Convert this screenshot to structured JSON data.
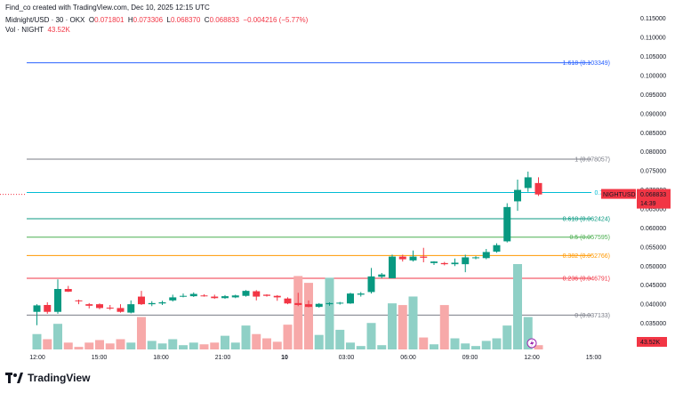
{
  "header": {
    "created_by": "Find_co created with TradingView.com, Dec 10, 2025 12:15 UTC",
    "symbol": "Midnight/USD · 30 · OKX",
    "open_k": "O",
    "open_v": "0.071801",
    "high_k": "H",
    "high_v": "0.073306",
    "low_k": "L",
    "low_v": "0.068370",
    "close_k": "C",
    "close_v": "0.068833",
    "change": "−0.004216 (−5.77%)",
    "vol_label": "Vol · NIGHT",
    "vol_value": "43.52K"
  },
  "logo_text": "TradingView",
  "colors": {
    "up": "#089981",
    "down": "#f23645",
    "up_vol": "#8fd0c6",
    "down_vol": "#f7a9a9"
  },
  "chart_data": {
    "type": "candlestick",
    "y_ticks": [
      "0.030000",
      "0.035000",
      "0.040000",
      "0.045000",
      "0.050000",
      "0.055000",
      "0.060000",
      "0.065000",
      "0.070000",
      "0.075000",
      "0.080000",
      "0.085000",
      "0.090000",
      "0.095000",
      "0.100000",
      "0.105000",
      "0.110000",
      "0.115000"
    ],
    "ylim": [
      0.0265,
      0.1175
    ],
    "x_ticks": [
      "12:00",
      "15:00",
      "18:00",
      "21:00",
      "10",
      "03:00",
      "06:00",
      "09:00",
      "12:00",
      "15:00"
    ],
    "last_price": {
      "symbol": "NIGHTUSD",
      "value": "0.068833",
      "countdown": "14:39"
    },
    "last_volume": "43.52K",
    "fib_levels": [
      {
        "label": "1.618 (0.103349)",
        "value": 0.103349,
        "color": "#2962ff"
      },
      {
        "label": "1 (0.078057)",
        "value": 0.078057,
        "color": "#787b86"
      },
      {
        "label": "0.786",
        "value": 0.069308,
        "color": "#00bcd4"
      },
      {
        "label": "0.618 (0.062424)",
        "value": 0.062424,
        "color": "#089981"
      },
      {
        "label": "0.5 (0.057595)",
        "value": 0.057595,
        "color": "#4caf50"
      },
      {
        "label": "0.382 (0.052766)",
        "value": 0.052766,
        "color": "#ff9800"
      },
      {
        "label": "0.236 (0.046791)",
        "value": 0.046791,
        "color": "#f23645"
      },
      {
        "label": "0 (0.037133)",
        "value": 0.037133,
        "color": "#787b86"
      }
    ],
    "candles": [
      {
        "o": 0.038,
        "h": 0.04,
        "l": 0.0345,
        "c": 0.0397,
        "v": 0.18
      },
      {
        "o": 0.0398,
        "h": 0.0405,
        "l": 0.0375,
        "c": 0.038,
        "v": 0.12
      },
      {
        "o": 0.038,
        "h": 0.0465,
        "l": 0.0375,
        "c": 0.044,
        "v": 0.3
      },
      {
        "o": 0.044,
        "h": 0.0448,
        "l": 0.0432,
        "c": 0.0433,
        "v": 0.08
      },
      {
        "o": 0.041,
        "h": 0.0412,
        "l": 0.04,
        "c": 0.0408,
        "v": 0.03
      },
      {
        "o": 0.04,
        "h": 0.0403,
        "l": 0.0389,
        "c": 0.0396,
        "v": 0.08
      },
      {
        "o": 0.04,
        "h": 0.0402,
        "l": 0.0387,
        "c": 0.039,
        "v": 0.11
      },
      {
        "o": 0.0391,
        "h": 0.0398,
        "l": 0.0385,
        "c": 0.039,
        "v": 0.07
      },
      {
        "o": 0.039,
        "h": 0.04,
        "l": 0.0378,
        "c": 0.038,
        "v": 0.12
      },
      {
        "o": 0.0378,
        "h": 0.041,
        "l": 0.0376,
        "c": 0.04,
        "v": 0.08
      },
      {
        "o": 0.042,
        "h": 0.0435,
        "l": 0.0398,
        "c": 0.04,
        "v": 0.38
      },
      {
        "o": 0.04,
        "h": 0.0408,
        "l": 0.0395,
        "c": 0.0403,
        "v": 0.1
      },
      {
        "o": 0.0402,
        "h": 0.0409,
        "l": 0.0398,
        "c": 0.0405,
        "v": 0.07
      },
      {
        "o": 0.041,
        "h": 0.0425,
        "l": 0.0407,
        "c": 0.0418,
        "v": 0.12
      },
      {
        "o": 0.042,
        "h": 0.0428,
        "l": 0.0418,
        "c": 0.0422,
        "v": 0.05
      },
      {
        "o": 0.0421,
        "h": 0.0431,
        "l": 0.0419,
        "c": 0.0427,
        "v": 0.08
      },
      {
        "o": 0.0423,
        "h": 0.0426,
        "l": 0.042,
        "c": 0.0422,
        "v": 0.06
      },
      {
        "o": 0.042,
        "h": 0.0425,
        "l": 0.0414,
        "c": 0.0416,
        "v": 0.08
      },
      {
        "o": 0.0416,
        "h": 0.0424,
        "l": 0.0414,
        "c": 0.0421,
        "v": 0.16
      },
      {
        "o": 0.0418,
        "h": 0.0425,
        "l": 0.0416,
        "c": 0.0423,
        "v": 0.08
      },
      {
        "o": 0.0422,
        "h": 0.0437,
        "l": 0.042,
        "c": 0.0435,
        "v": 0.28
      },
      {
        "o": 0.0434,
        "h": 0.0437,
        "l": 0.041,
        "c": 0.042,
        "v": 0.18
      },
      {
        "o": 0.0425,
        "h": 0.0426,
        "l": 0.042,
        "c": 0.0422,
        "v": 0.13
      },
      {
        "o": 0.0422,
        "h": 0.0424,
        "l": 0.0409,
        "c": 0.0418,
        "v": 0.09
      },
      {
        "o": 0.0415,
        "h": 0.0418,
        "l": 0.04,
        "c": 0.0402,
        "v": 0.29
      },
      {
        "o": 0.0403,
        "h": 0.043,
        "l": 0.0395,
        "c": 0.0398,
        "v": 0.86
      },
      {
        "o": 0.04,
        "h": 0.041,
        "l": 0.0392,
        "c": 0.0393,
        "v": 0.78
      },
      {
        "o": 0.0393,
        "h": 0.0403,
        "l": 0.0391,
        "c": 0.0401,
        "v": 0.17
      },
      {
        "o": 0.04,
        "h": 0.0405,
        "l": 0.0396,
        "c": 0.0403,
        "v": 0.84
      },
      {
        "o": 0.0402,
        "h": 0.0406,
        "l": 0.0399,
        "c": 0.0404,
        "v": 0.23
      },
      {
        "o": 0.0402,
        "h": 0.043,
        "l": 0.0401,
        "c": 0.0428,
        "v": 0.08
      },
      {
        "o": 0.0425,
        "h": 0.0432,
        "l": 0.042,
        "c": 0.0428,
        "v": 0.04
      },
      {
        "o": 0.0432,
        "h": 0.0495,
        "l": 0.0428,
        "c": 0.0473,
        "v": 0.31
      },
      {
        "o": 0.0472,
        "h": 0.0482,
        "l": 0.0468,
        "c": 0.0478,
        "v": 0.05
      },
      {
        "o": 0.0468,
        "h": 0.053,
        "l": 0.0468,
        "c": 0.0525,
        "v": 0.54
      },
      {
        "o": 0.0525,
        "h": 0.053,
        "l": 0.0512,
        "c": 0.0518,
        "v": 0.52
      },
      {
        "o": 0.0515,
        "h": 0.0541,
        "l": 0.0512,
        "c": 0.0525,
        "v": 0.62
      },
      {
        "o": 0.0525,
        "h": 0.0548,
        "l": 0.051,
        "c": 0.0522,
        "v": 0.14
      },
      {
        "o": 0.0508,
        "h": 0.0513,
        "l": 0.0503,
        "c": 0.0512,
        "v": 0.06
      },
      {
        "o": 0.0508,
        "h": 0.0511,
        "l": 0.0502,
        "c": 0.0505,
        "v": 0.52
      },
      {
        "o": 0.0505,
        "h": 0.052,
        "l": 0.05,
        "c": 0.0509,
        "v": 0.13
      },
      {
        "o": 0.0505,
        "h": 0.053,
        "l": 0.0484,
        "c": 0.0523,
        "v": 0.07
      },
      {
        "o": 0.0521,
        "h": 0.0526,
        "l": 0.0518,
        "c": 0.0523,
        "v": 0.04
      },
      {
        "o": 0.0521,
        "h": 0.0545,
        "l": 0.0518,
        "c": 0.0537,
        "v": 0.1
      },
      {
        "o": 0.0538,
        "h": 0.056,
        "l": 0.0535,
        "c": 0.0555,
        "v": 0.13
      },
      {
        "o": 0.0565,
        "h": 0.0665,
        "l": 0.0562,
        "c": 0.0655,
        "v": 0.28
      },
      {
        "o": 0.067,
        "h": 0.0727,
        "l": 0.0645,
        "c": 0.07,
        "v": 1.0
      },
      {
        "o": 0.0705,
        "h": 0.0748,
        "l": 0.0695,
        "c": 0.0733,
        "v": 0.38
      },
      {
        "o": 0.0718,
        "h": 0.0733,
        "l": 0.0684,
        "c": 0.0688,
        "v": 0.05
      }
    ]
  }
}
